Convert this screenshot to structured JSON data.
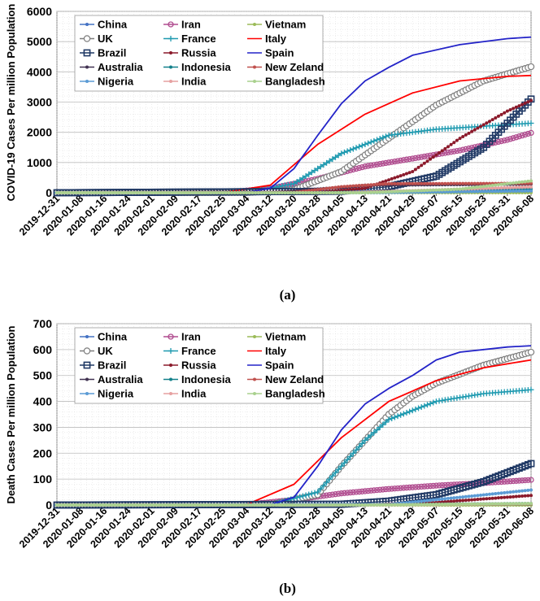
{
  "chart_data": [
    {
      "type": "line",
      "panel_label": "(a)",
      "ylabel": "COVID-19 Cases Per million Population",
      "ylim": [
        0,
        6000
      ],
      "yticks": [
        0,
        1000,
        2000,
        3000,
        4000,
        5000,
        6000
      ],
      "xlim": [
        "2019-12-31",
        "2020-06-08"
      ],
      "xticks": [
        "2019-12-31",
        "2020-01-08",
        "2020-01-16",
        "2020-01-24",
        "2020-02-01",
        "2020-02-09",
        "2020-02-17",
        "2020-02-25",
        "2020-03-04",
        "2020-03-12",
        "2020-03-20",
        "2020-03-28",
        "2020-04-05",
        "2020-04-13",
        "2020-04-21",
        "2020-04-29",
        "2020-05-07",
        "2020-05-15",
        "2020-05-23",
        "2020-05-31",
        "2020-06-08"
      ],
      "grid": true,
      "legend_position": "top-left",
      "series": [
        {
          "name": "China",
          "color": "#4472C4",
          "marker": "dot",
          "x": [
            "2019-12-31",
            "2020-01-20",
            "2020-02-05",
            "2020-02-20",
            "2020-03-10",
            "2020-06-08"
          ],
          "y": [
            0,
            1,
            30,
            52,
            56,
            58
          ]
        },
        {
          "name": "Iran",
          "color": "#B04C8F",
          "marker": "circle",
          "x": [
            "2019-12-31",
            "2020-02-25",
            "2020-03-12",
            "2020-03-28",
            "2020-04-13",
            "2020-04-29",
            "2020-05-15",
            "2020-05-31",
            "2020-06-08"
          ],
          "y": [
            0,
            5,
            140,
            460,
            870,
            1130,
            1400,
            1750,
            1980
          ]
        },
        {
          "name": "Vietnam",
          "color": "#9BBB59",
          "marker": "dot",
          "x": [
            "2019-12-31",
            "2020-06-08"
          ],
          "y": [
            0,
            4
          ]
        },
        {
          "name": "UK",
          "color": "#7F7F7F",
          "marker": "open-circle",
          "x": [
            "2019-12-31",
            "2020-03-04",
            "2020-03-20",
            "2020-04-05",
            "2020-04-21",
            "2020-05-07",
            "2020-05-23",
            "2020-06-08"
          ],
          "y": [
            0,
            5,
            100,
            700,
            1800,
            2900,
            3700,
            4170
          ]
        },
        {
          "name": "France",
          "color": "#1F9AB0",
          "marker": "plus",
          "x": [
            "2019-12-31",
            "2020-03-04",
            "2020-03-20",
            "2020-04-05",
            "2020-04-21",
            "2020-05-07",
            "2020-05-23",
            "2020-06-08"
          ],
          "y": [
            0,
            5,
            300,
            1300,
            1900,
            2100,
            2200,
            2300
          ]
        },
        {
          "name": "Italy",
          "color": "#FF0000",
          "marker": "none",
          "x": [
            "2019-12-31",
            "2020-02-25",
            "2020-03-12",
            "2020-03-28",
            "2020-04-13",
            "2020-04-29",
            "2020-05-15",
            "2020-05-31",
            "2020-06-08"
          ],
          "y": [
            0,
            5,
            250,
            1600,
            2600,
            3300,
            3700,
            3850,
            3880
          ]
        },
        {
          "name": "Brazil",
          "color": "#1F3864",
          "marker": "open-square",
          "x": [
            "2019-12-31",
            "2020-04-05",
            "2020-04-21",
            "2020-05-07",
            "2020-05-23",
            "2020-05-31",
            "2020-06-08"
          ],
          "y": [
            0,
            50,
            200,
            550,
            1500,
            2300,
            3100
          ]
        },
        {
          "name": "Russia",
          "color": "#8B1A2B",
          "marker": "dot",
          "x": [
            "2019-12-31",
            "2020-03-28",
            "2020-04-13",
            "2020-04-29",
            "2020-05-15",
            "2020-05-31",
            "2020-06-08"
          ],
          "y": [
            0,
            10,
            150,
            700,
            1800,
            2700,
            3050
          ]
        },
        {
          "name": "Spain",
          "color": "#2323C8",
          "marker": "none",
          "x": [
            "2019-12-31",
            "2020-03-04",
            "2020-03-12",
            "2020-03-20",
            "2020-03-28",
            "2020-04-05",
            "2020-04-13",
            "2020-04-21",
            "2020-04-29",
            "2020-05-15",
            "2020-05-31",
            "2020-06-08"
          ],
          "y": [
            0,
            10,
            150,
            800,
            1900,
            2950,
            3700,
            4150,
            4550,
            4900,
            5100,
            5150
          ]
        },
        {
          "name": "Australia",
          "color": "#403151",
          "marker": "dot",
          "x": [
            "2019-12-31",
            "2020-03-12",
            "2020-03-28",
            "2020-04-13",
            "2020-06-08"
          ],
          "y": [
            0,
            5,
            120,
            250,
            285
          ]
        },
        {
          "name": "Indonesia",
          "color": "#12808A",
          "marker": "dot",
          "x": [
            "2019-12-31",
            "2020-03-28",
            "2020-06-08"
          ],
          "y": [
            0,
            1,
            120
          ]
        },
        {
          "name": "New Zeland",
          "color": "#C0504D",
          "marker": "dot",
          "x": [
            "2019-12-31",
            "2020-03-20",
            "2020-04-05",
            "2020-04-21",
            "2020-06-08"
          ],
          "y": [
            0,
            10,
            200,
            300,
            310
          ]
        },
        {
          "name": "Nigeria",
          "color": "#5B9BD5",
          "marker": "dot",
          "x": [
            "2019-12-31",
            "2020-04-13",
            "2020-06-08"
          ],
          "y": [
            0,
            1,
            60
          ]
        },
        {
          "name": "India",
          "color": "#E6A0A0",
          "marker": "dot",
          "x": [
            "2019-12-31",
            "2020-04-05",
            "2020-06-08"
          ],
          "y": [
            0,
            1,
            190
          ]
        },
        {
          "name": "Bangladesh",
          "color": "#A9D18E",
          "marker": "dot",
          "x": [
            "2019-12-31",
            "2020-04-13",
            "2020-05-15",
            "2020-06-08"
          ],
          "y": [
            0,
            1,
            120,
            390
          ]
        }
      ]
    },
    {
      "type": "line",
      "panel_label": "(b)",
      "ylabel": "Death Cases Per million Population",
      "ylim": [
        0,
        700
      ],
      "yticks": [
        0,
        100,
        200,
        300,
        400,
        500,
        600,
        700
      ],
      "xlim": [
        "2019-12-31",
        "2020-06-08"
      ],
      "xticks": [
        "2019-12-31",
        "2020-01-08",
        "2020-01-16",
        "2020-01-24",
        "2020-02-01",
        "2020-02-09",
        "2020-02-17",
        "2020-02-25",
        "2020-03-04",
        "2020-03-12",
        "2020-03-20",
        "2020-03-28",
        "2020-04-05",
        "2020-04-13",
        "2020-04-21",
        "2020-04-29",
        "2020-05-07",
        "2020-05-15",
        "2020-05-23",
        "2020-05-31",
        "2020-06-08"
      ],
      "grid": true,
      "legend_position": "top-left",
      "series": [
        {
          "name": "China",
          "color": "#4472C4",
          "marker": "dot",
          "x": [
            "2019-12-31",
            "2020-02-15",
            "2020-03-10",
            "2020-06-08"
          ],
          "y": [
            0,
            1,
            2,
            3
          ]
        },
        {
          "name": "Iran",
          "color": "#B04C8F",
          "marker": "circle",
          "x": [
            "2019-12-31",
            "2020-03-04",
            "2020-03-20",
            "2020-04-05",
            "2020-04-21",
            "2020-05-07",
            "2020-05-23",
            "2020-06-08"
          ],
          "y": [
            0,
            2,
            20,
            45,
            62,
            75,
            85,
            97
          ]
        },
        {
          "name": "Vietnam",
          "color": "#9BBB59",
          "marker": "dot",
          "x": [
            "2019-12-31",
            "2020-06-08"
          ],
          "y": [
            0,
            0
          ]
        },
        {
          "name": "UK",
          "color": "#7F7F7F",
          "marker": "open-circle",
          "x": [
            "2019-12-31",
            "2020-03-12",
            "2020-03-28",
            "2020-04-05",
            "2020-04-13",
            "2020-04-21",
            "2020-04-29",
            "2020-05-07",
            "2020-05-23",
            "2020-06-08"
          ],
          "y": [
            0,
            1,
            40,
            150,
            250,
            350,
            420,
            470,
            540,
            590
          ]
        },
        {
          "name": "France",
          "color": "#1F9AB0",
          "marker": "plus",
          "x": [
            "2019-12-31",
            "2020-03-12",
            "2020-03-28",
            "2020-04-05",
            "2020-04-13",
            "2020-04-21",
            "2020-05-07",
            "2020-05-23",
            "2020-06-08"
          ],
          "y": [
            0,
            1,
            50,
            150,
            250,
            330,
            400,
            430,
            445
          ]
        },
        {
          "name": "Italy",
          "color": "#FF0000",
          "marker": "none",
          "x": [
            "2019-12-31",
            "2020-03-04",
            "2020-03-20",
            "2020-04-05",
            "2020-04-21",
            "2020-05-07",
            "2020-05-23",
            "2020-06-08"
          ],
          "y": [
            0,
            2,
            80,
            260,
            400,
            480,
            530,
            560
          ]
        },
        {
          "name": "Brazil",
          "color": "#1F3864",
          "marker": "open-square",
          "x": [
            "2019-12-31",
            "2020-04-05",
            "2020-04-21",
            "2020-05-07",
            "2020-05-23",
            "2020-06-08"
          ],
          "y": [
            0,
            3,
            15,
            40,
            90,
            160
          ]
        },
        {
          "name": "Russia",
          "color": "#8B1A2B",
          "marker": "dot",
          "x": [
            "2019-12-31",
            "2020-04-13",
            "2020-05-07",
            "2020-06-08"
          ],
          "y": [
            0,
            1,
            10,
            37
          ]
        },
        {
          "name": "Spain",
          "color": "#2323C8",
          "marker": "none",
          "x": [
            "2019-12-31",
            "2020-03-12",
            "2020-03-20",
            "2020-03-28",
            "2020-04-05",
            "2020-04-13",
            "2020-04-21",
            "2020-04-29",
            "2020-05-07",
            "2020-05-15",
            "2020-05-31",
            "2020-06-08"
          ],
          "y": [
            0,
            2,
            30,
            150,
            290,
            390,
            450,
            500,
            560,
            590,
            610,
            615
          ]
        },
        {
          "name": "Australia",
          "color": "#403151",
          "marker": "dot",
          "x": [
            "2019-12-31",
            "2020-03-20",
            "2020-04-13",
            "2020-06-08"
          ],
          "y": [
            0,
            0,
            2,
            4
          ]
        },
        {
          "name": "Indonesia",
          "color": "#12808A",
          "marker": "dot",
          "x": [
            "2019-12-31",
            "2020-03-20",
            "2020-06-08"
          ],
          "y": [
            0,
            0,
            6
          ]
        },
        {
          "name": "New Zeland",
          "color": "#C0504D",
          "marker": "dot",
          "x": [
            "2019-12-31",
            "2020-04-05",
            "2020-06-08"
          ],
          "y": [
            0,
            0,
            5
          ]
        },
        {
          "name": "Nigeria",
          "color": "#5B9BD5",
          "marker": "dot",
          "x": [
            "2019-12-31",
            "2020-04-21",
            "2020-05-15",
            "2020-06-08"
          ],
          "y": [
            0,
            2,
            30,
            58
          ]
        },
        {
          "name": "India",
          "color": "#E6A0A0",
          "marker": "dot",
          "x": [
            "2019-12-31",
            "2020-04-13",
            "2020-06-08"
          ],
          "y": [
            0,
            0,
            5
          ]
        },
        {
          "name": "Bangladesh",
          "color": "#A9D18E",
          "marker": "dot",
          "x": [
            "2019-12-31",
            "2020-04-13",
            "2020-06-08"
          ],
          "y": [
            0,
            0,
            6
          ]
        }
      ]
    }
  ]
}
